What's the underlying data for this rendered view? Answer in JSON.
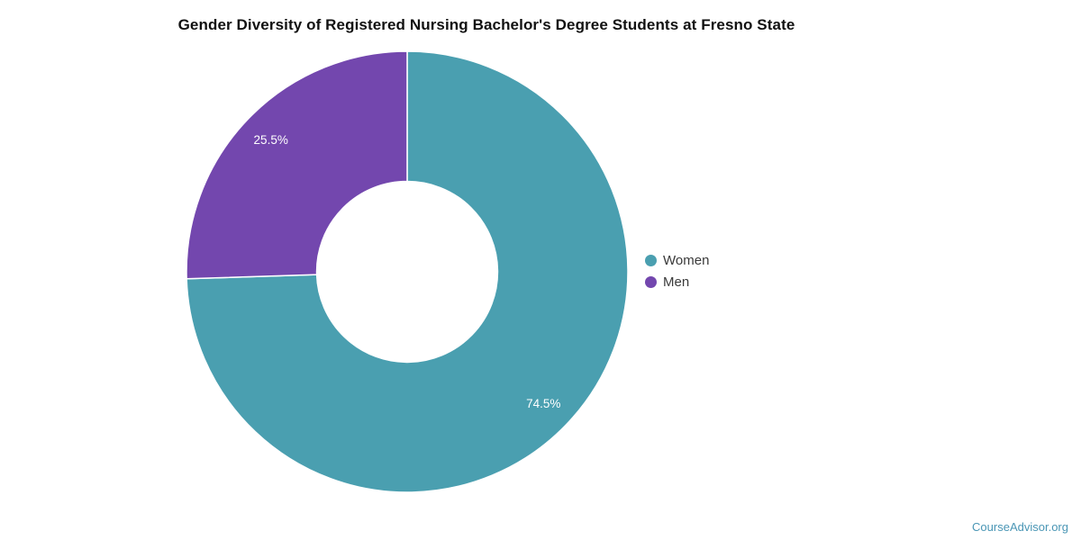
{
  "page": {
    "title": "Gender Diversity of Registered Nursing Bachelor's Degree Students at Fresno State",
    "brand_link": "CourseAdvisor.org",
    "brand_color": "#4a96b5",
    "background": "#ffffff"
  },
  "chart_data": {
    "type": "pie",
    "subtype": "donut",
    "title": "Gender Diversity of Registered Nursing Bachelor's Degree Students at Fresno State",
    "categories": [
      "Women",
      "Men"
    ],
    "values": [
      74.5,
      25.5
    ],
    "data_labels": [
      "74.5%",
      "25.5%"
    ],
    "colors": [
      "#4A9FB0",
      "#7347AE"
    ],
    "slice_border_color": "#FFFFFF",
    "data_label_color": "#FFFFFF",
    "start_angle_deg": 0,
    "direction": "clockwise",
    "inner_radius_ratio": 0.41,
    "label_radius_ratio": 0.86,
    "legend_position": "right",
    "grid": "off"
  }
}
